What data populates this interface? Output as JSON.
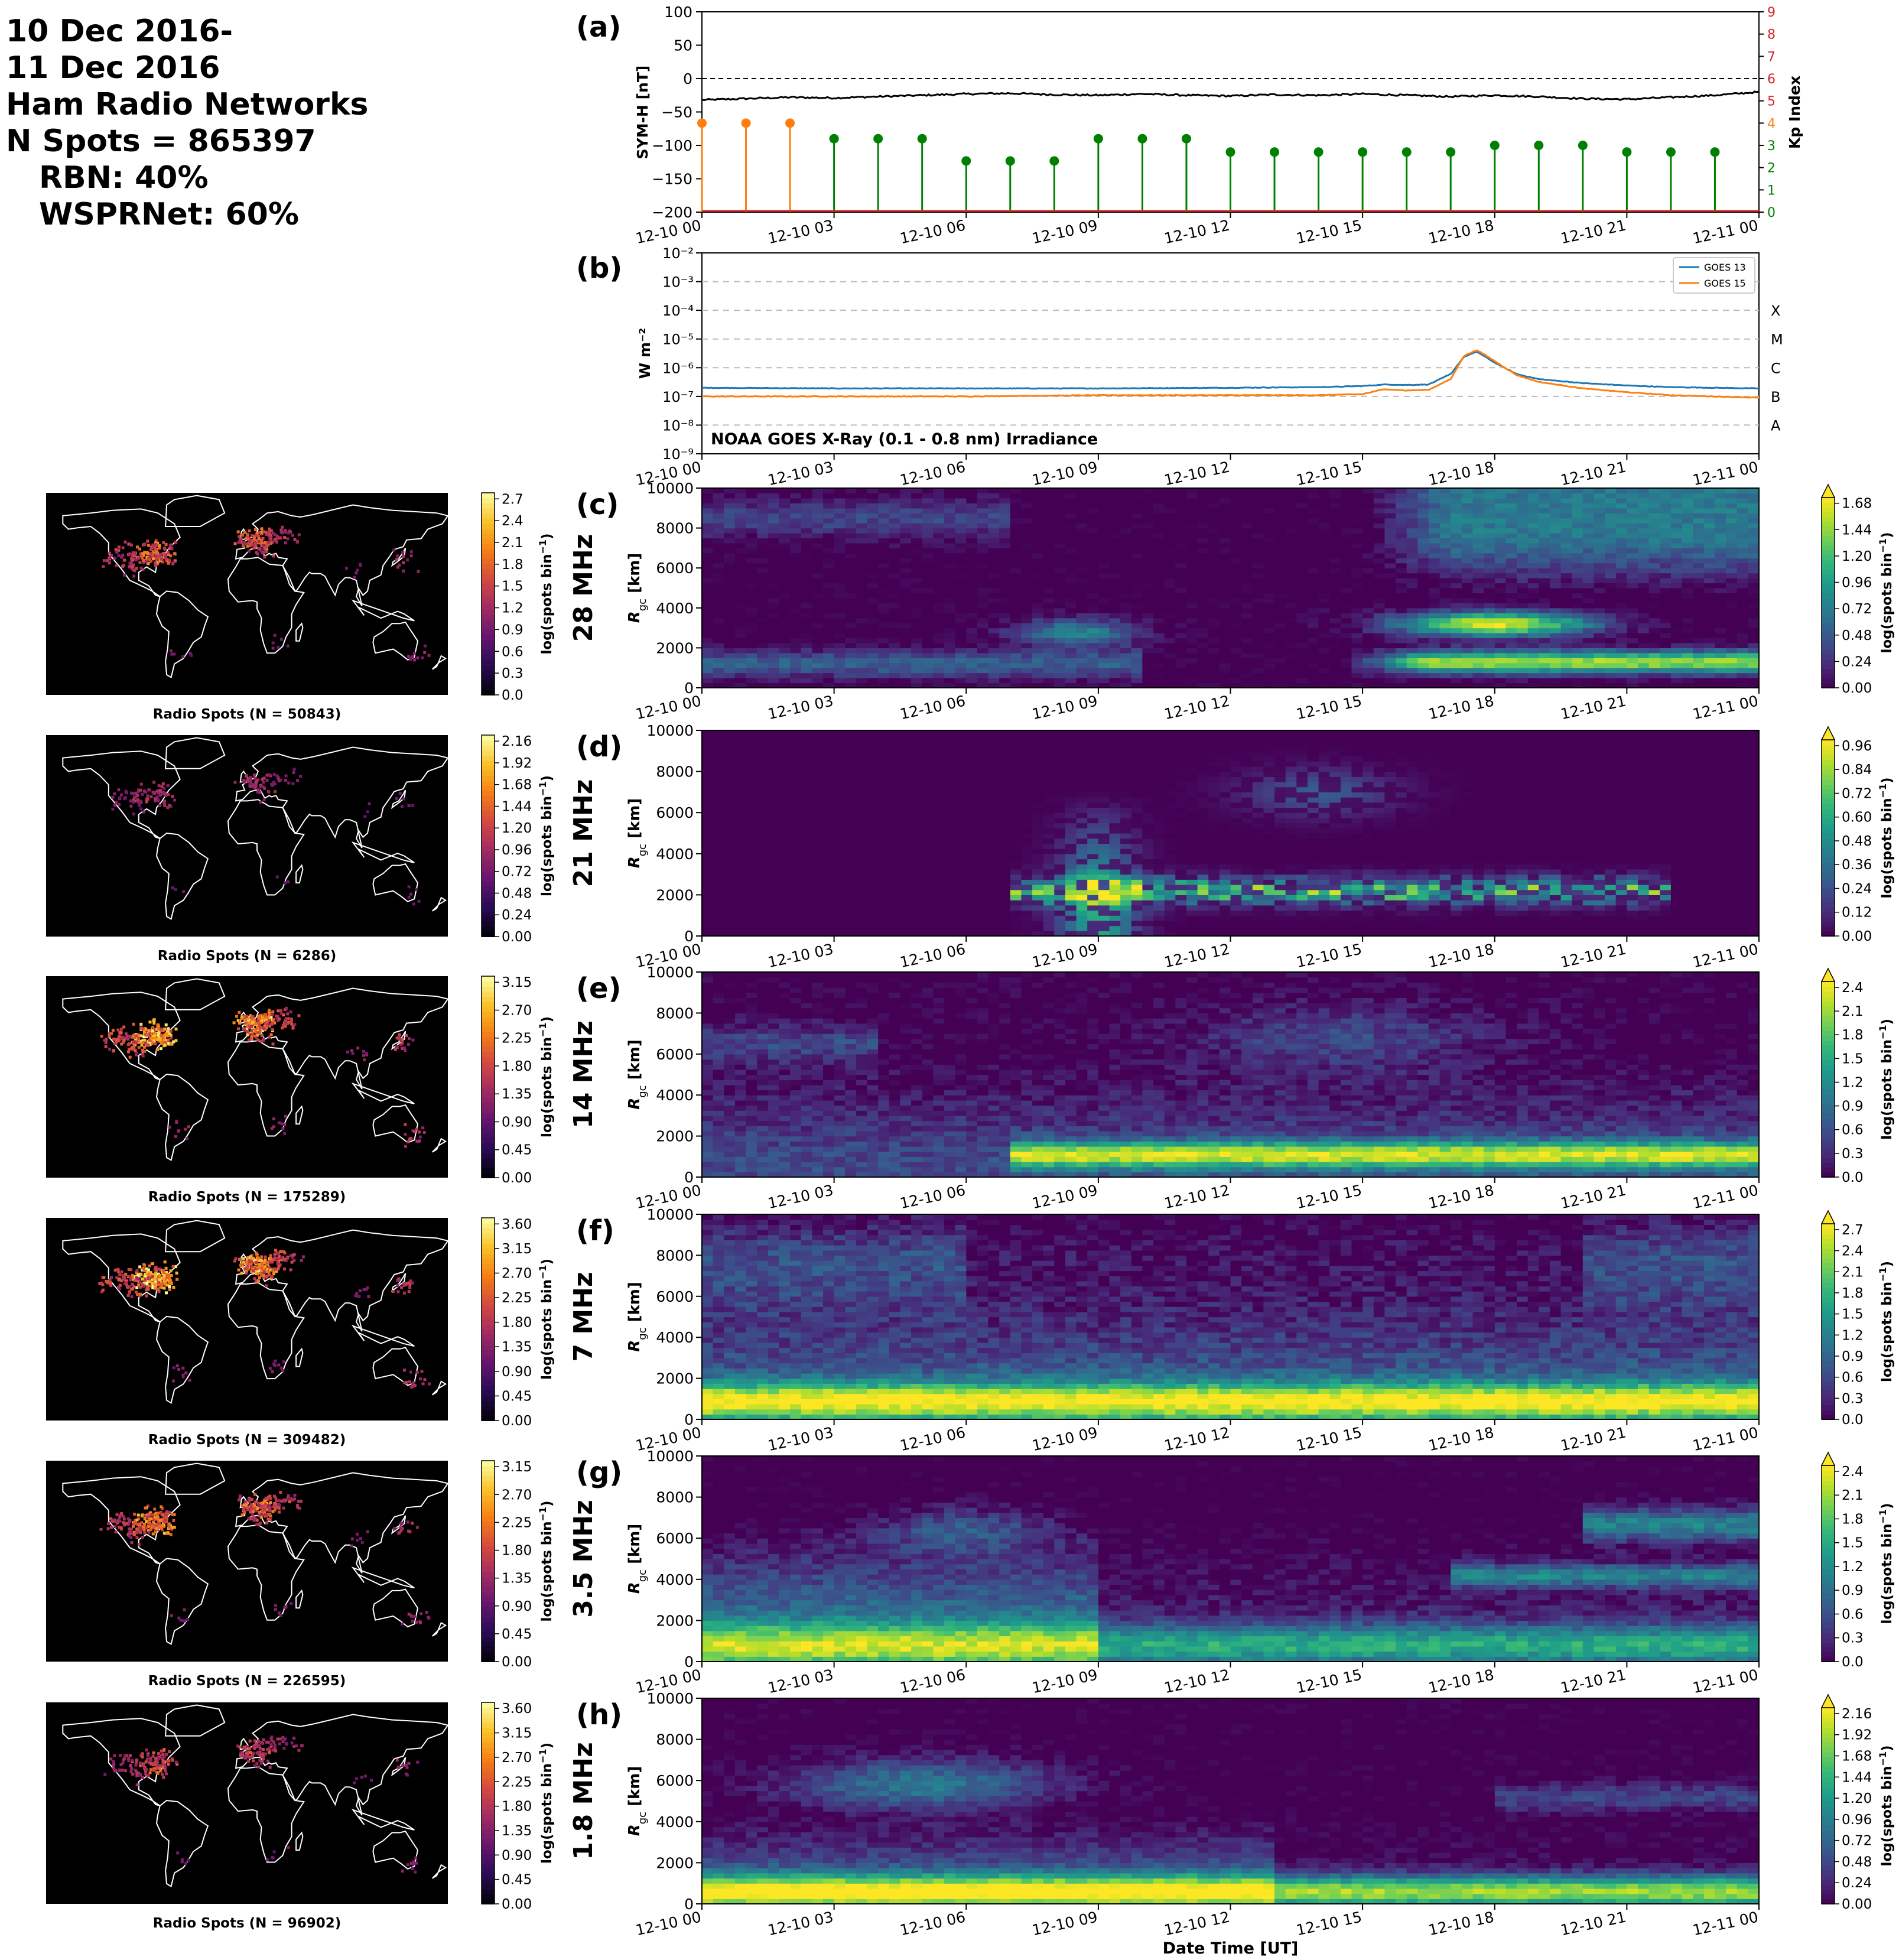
{
  "header": {
    "lines": [
      "10 Dec 2016-",
      "11 Dec 2016",
      "Ham Radio Networks",
      "N Spots = 865397"
    ],
    "sub_lines": [
      "RBN: 40%",
      "WSPRNet: 60%"
    ]
  },
  "time_ticks": [
    "12-10 00",
    "12-10 03",
    "12-10 06",
    "12-10 09",
    "12-10 12",
    "12-10 15",
    "12-10 18",
    "12-10 21",
    "12-11 00"
  ],
  "xlabel": "Date Time [UT]",
  "symh": {
    "label": "(a)",
    "ylabel": "SYM-H [nT]",
    "y2label": "Kp Index",
    "ylim": [
      -200,
      100
    ],
    "yticks": [
      "100",
      "50",
      "0",
      "−50",
      "−100",
      "−150",
      "−200"
    ],
    "kp_ticks": [
      "9",
      "8",
      "7",
      "6",
      "5",
      "4",
      "3",
      "2",
      "1",
      "0"
    ],
    "kp_lim": [
      0,
      9
    ],
    "symh_series": {
      "hours": [
        0,
        1,
        2,
        3,
        4,
        5,
        6,
        7,
        8,
        9,
        10,
        11,
        12,
        13,
        14,
        15,
        16,
        17,
        18,
        19,
        20,
        21,
        22,
        23,
        24
      ],
      "values": [
        -32,
        -30,
        -28,
        -29,
        -27,
        -25,
        -23,
        -22,
        -24,
        -25,
        -23,
        -25,
        -26,
        -24,
        -25,
        -23,
        -25,
        -27,
        -25,
        -27,
        -30,
        -31,
        -28,
        -25,
        -20
      ]
    },
    "kp_points": {
      "hours": [
        0,
        1,
        2,
        3,
        4,
        5,
        6,
        7,
        8,
        9,
        10,
        11,
        12,
        13,
        14,
        15,
        16,
        17,
        18,
        19,
        20,
        21,
        22,
        23
      ],
      "values": [
        4.0,
        4.0,
        4.0,
        3.3,
        3.3,
        3.3,
        2.3,
        2.3,
        2.3,
        3.3,
        3.3,
        3.3,
        2.7,
        2.7,
        2.7,
        2.7,
        2.7,
        2.7,
        3.0,
        3.0,
        3.0,
        2.7,
        2.7,
        2.7
      ],
      "colors": [
        "#ff7f0e",
        "#ff7f0e",
        "#ff7f0e",
        "#008000",
        "#008000",
        "#008000",
        "#008000",
        "#008000",
        "#008000",
        "#008000",
        "#008000",
        "#008000",
        "#008000",
        "#008000",
        "#008000",
        "#008000",
        "#008000",
        "#008000",
        "#008000",
        "#008000",
        "#008000",
        "#008000",
        "#008000",
        "#008000"
      ]
    }
  },
  "goes": {
    "label": "(b)",
    "ylabel": "W m⁻²",
    "yticks": [
      "10⁻²",
      "10⁻³",
      "10⁻⁴",
      "10⁻⁵",
      "10⁻⁶",
      "10⁻⁷",
      "10⁻⁸",
      "10⁻⁹"
    ],
    "flare_classes": [
      "X",
      "M",
      "C",
      "B",
      "A"
    ],
    "annotation": "NOAA GOES X-Ray (0.1 - 0.8 nm) Irradiance",
    "legend": [
      "GOES 13",
      "GOES 15"
    ],
    "series_colors": [
      "#1f77b4",
      "#ff7f0e"
    ],
    "hours": [
      0,
      3,
      6,
      9,
      12,
      14,
      15,
      15.5,
      16,
      16.5,
      17,
      17.3,
      17.6,
      18,
      18.5,
      19,
      20,
      21,
      22,
      24
    ],
    "goes13": [
      2e-07,
      1.9e-07,
      1.9e-07,
      1.9e-07,
      2e-07,
      2.1e-07,
      2.3e-07,
      2.6e-07,
      2.5e-07,
      2.6e-07,
      6e-07,
      2.4e-06,
      3.6e-06,
      1.5e-06,
      6e-07,
      4e-07,
      2.9e-07,
      2.4e-07,
      2.1e-07,
      1.9e-07
    ],
    "goes15": [
      1e-07,
      1e-07,
      1e-07,
      1.1e-07,
      1.1e-07,
      1.1e-07,
      1.2e-07,
      1.8e-07,
      1.6e-07,
      1.7e-07,
      4e-07,
      2.6e-06,
      4.1e-06,
      1.7e-06,
      5.5e-07,
      3.2e-07,
      1.9e-07,
      1.4e-07,
      1.1e-07,
      9e-08
    ]
  },
  "bands": [
    {
      "label": "(c)",
      "band": "28 MHz",
      "map_title": "Radio Spots (N = 50843)",
      "map_cbar": [
        "2.7",
        "2.4",
        "2.1",
        "1.8",
        "1.5",
        "1.2",
        "0.9",
        "0.6",
        "0.3",
        "0.0"
      ],
      "rtp_cbar": [
        "1.68",
        "1.44",
        "1.20",
        "0.96",
        "0.72",
        "0.48",
        "0.24",
        "0.00"
      ],
      "vmax": 1.8
    },
    {
      "label": "(d)",
      "band": "21 MHz",
      "map_title": "Radio Spots (N = 6286)",
      "map_cbar": [
        "2.16",
        "1.92",
        "1.68",
        "1.44",
        "1.20",
        "0.96",
        "0.72",
        "0.48",
        "0.24",
        "0.00"
      ],
      "rtp_cbar": [
        "0.96",
        "0.84",
        "0.72",
        "0.60",
        "0.48",
        "0.36",
        "0.24",
        "0.12",
        "0.00"
      ],
      "vmax": 1.05
    },
    {
      "label": "(e)",
      "band": "14 MHz",
      "map_title": "Radio Spots (N = 175289)",
      "map_cbar": [
        "3.15",
        "2.70",
        "2.25",
        "1.80",
        "1.35",
        "0.90",
        "0.45",
        "0.00"
      ],
      "rtp_cbar": [
        "2.4",
        "2.1",
        "1.8",
        "1.5",
        "1.2",
        "0.9",
        "0.6",
        "0.3",
        "0.0"
      ],
      "vmax": 2.55
    },
    {
      "label": "(f)",
      "band": "7 MHz",
      "map_title": "Radio Spots (N = 309482)",
      "map_cbar": [
        "3.60",
        "3.15",
        "2.70",
        "2.25",
        "1.80",
        "1.35",
        "0.90",
        "0.45",
        "0.00"
      ],
      "rtp_cbar": [
        "2.7",
        "2.4",
        "2.1",
        "1.8",
        "1.5",
        "1.2",
        "0.9",
        "0.6",
        "0.3",
        "0.0"
      ],
      "vmax": 2.85
    },
    {
      "label": "(g)",
      "band": "3.5 MHz",
      "map_title": "Radio Spots (N = 226595)",
      "map_cbar": [
        "3.15",
        "2.70",
        "2.25",
        "1.80",
        "1.35",
        "0.90",
        "0.45",
        "0.00"
      ],
      "rtp_cbar": [
        "2.4",
        "2.1",
        "1.8",
        "1.5",
        "1.2",
        "0.9",
        "0.6",
        "0.3",
        "0.0"
      ],
      "vmax": 2.55
    },
    {
      "label": "(h)",
      "band": "1.8 MHz",
      "map_title": "Radio Spots (N = 96902)",
      "map_cbar": [
        "3.60",
        "3.15",
        "2.70",
        "2.25",
        "1.80",
        "1.35",
        "0.90",
        "0.45",
        "0.00"
      ],
      "rtp_cbar": [
        "2.16",
        "1.92",
        "1.68",
        "1.44",
        "1.20",
        "0.96",
        "0.72",
        "0.48",
        "0.24",
        "0.00"
      ],
      "vmax": 2.3
    }
  ],
  "rtp_ylabel": "R",
  "rtp_ylabel_sub": "gc",
  "rtp_ylabel_unit": " [km]",
  "rtp_yticks": [
    "10000",
    "8000",
    "6000",
    "4000",
    "2000",
    "0"
  ],
  "cbar_label": "log(spots bin",
  "cbar_label_sup": "−1",
  "cbar_label_end": ")",
  "chart_data": [
    {
      "type": "line",
      "title": "",
      "xlabel": "",
      "ylabel": "SYM-H [nT]",
      "ylim": [
        -200,
        100
      ],
      "y2label": "Kp Index",
      "y2lim": [
        0,
        9
      ]
    },
    {
      "type": "line",
      "title": "NOAA GOES X-Ray (0.1 - 0.8 nm) Irradiance",
      "ylabel": "W m⁻²",
      "yscale": "log",
      "ylim": [
        1e-09,
        0.01
      ],
      "legend": "top-right"
    },
    {
      "type": "heatmap",
      "panels": [
        "28 MHz",
        "21 MHz",
        "14 MHz",
        "7 MHz",
        "3.5 MHz",
        "1.8 MHz"
      ],
      "xlabel": "Date Time [UT]",
      "ylim": [
        0,
        10000
      ],
      "colormap": "viridis"
    }
  ]
}
